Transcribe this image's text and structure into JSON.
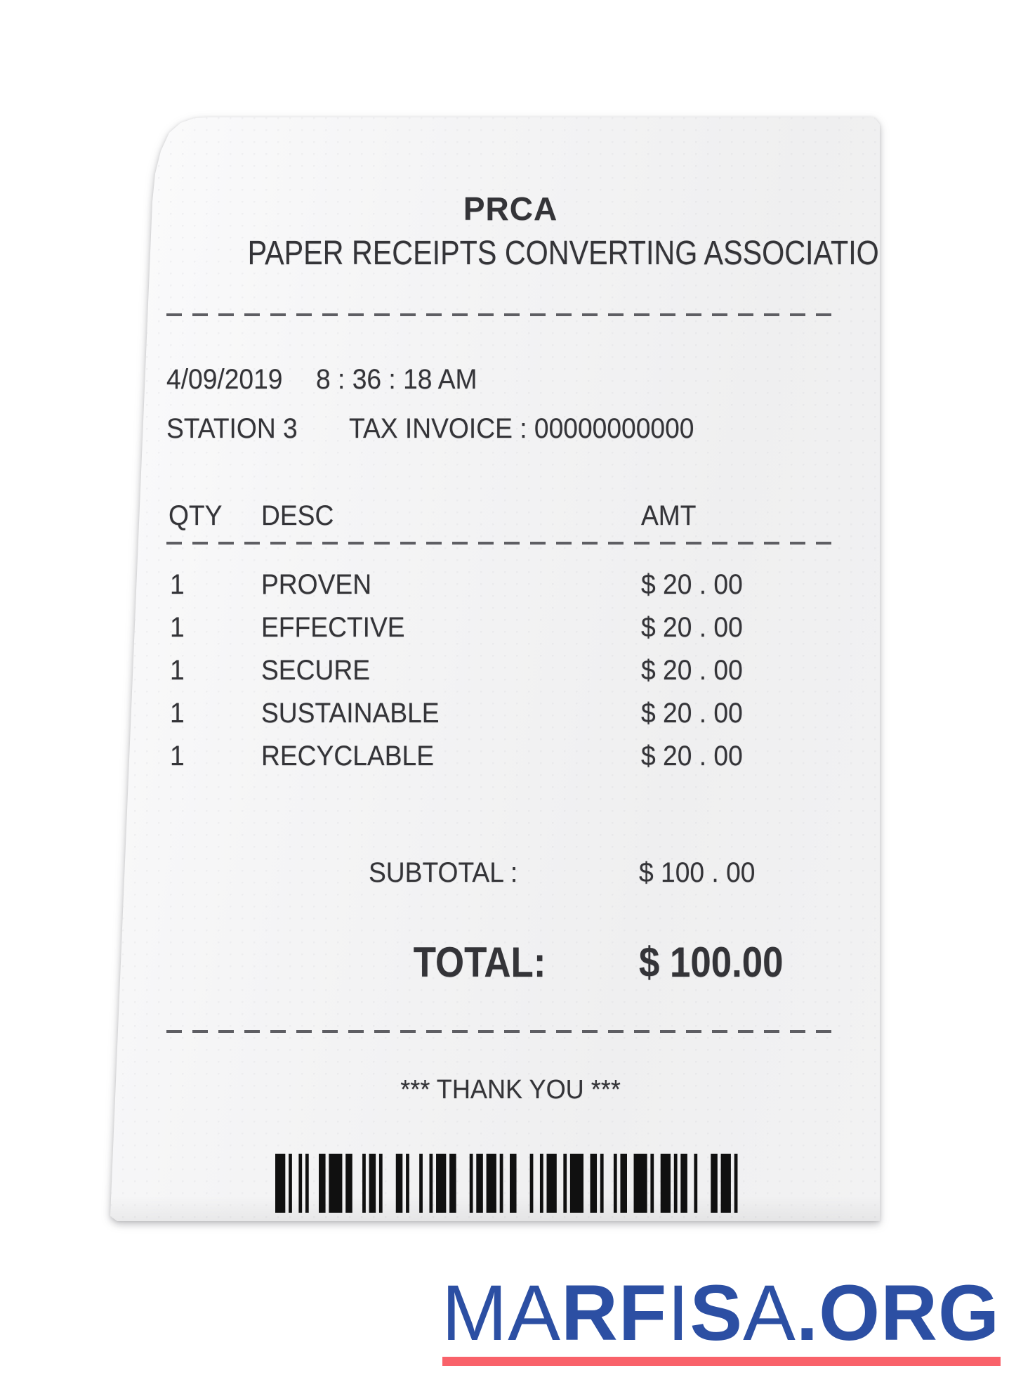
{
  "theme": {
    "logo-blue": "#2c4fa3",
    "logo-underline-red": "#f9626a",
    "paper-color": "#f2f2f3",
    "ink-color": "#343438"
  },
  "receipt": {
    "store_name": "PRCA",
    "store_subtitle": "PAPER RECEIPTS CONVERTING ASSOCIATION",
    "date": "4/09/2019",
    "time": "8 : 36 : 18  AM",
    "station": "STATION 3",
    "tax_invoice": "TAX INVOICE : 00000000000",
    "columns": {
      "qty": "QTY",
      "desc": "DESC",
      "amt": "AMT"
    },
    "items": [
      {
        "qty": "1",
        "desc": "PROVEN",
        "amt": "$ 20 . 00"
      },
      {
        "qty": "1",
        "desc": "EFFECTIVE",
        "amt": "$ 20 . 00"
      },
      {
        "qty": "1",
        "desc": "SECURE",
        "amt": "$ 20 . 00"
      },
      {
        "qty": "1",
        "desc": "SUSTAINABLE",
        "amt": "$ 20 . 00"
      },
      {
        "qty": "1",
        "desc": "RECYCLABLE",
        "amt": "$ 20 . 00"
      }
    ],
    "subtotal_label": "SUBTOTAL :",
    "subtotal_value": "$ 100 . 00",
    "total_label": "TOTAL:",
    "total_value": "$ 100.00",
    "footer_message": "*** THANK YOU ***"
  },
  "branding": {
    "logo": {
      "segments": [
        {
          "text": "MA",
          "weight": "light"
        },
        {
          "text": "RF",
          "weight": "bold"
        },
        {
          "text": "I",
          "weight": "light"
        },
        {
          "text": "S",
          "weight": "bold"
        },
        {
          "text": "A",
          "weight": "light"
        },
        {
          "text": ".ORG",
          "weight": "bold"
        }
      ]
    }
  }
}
